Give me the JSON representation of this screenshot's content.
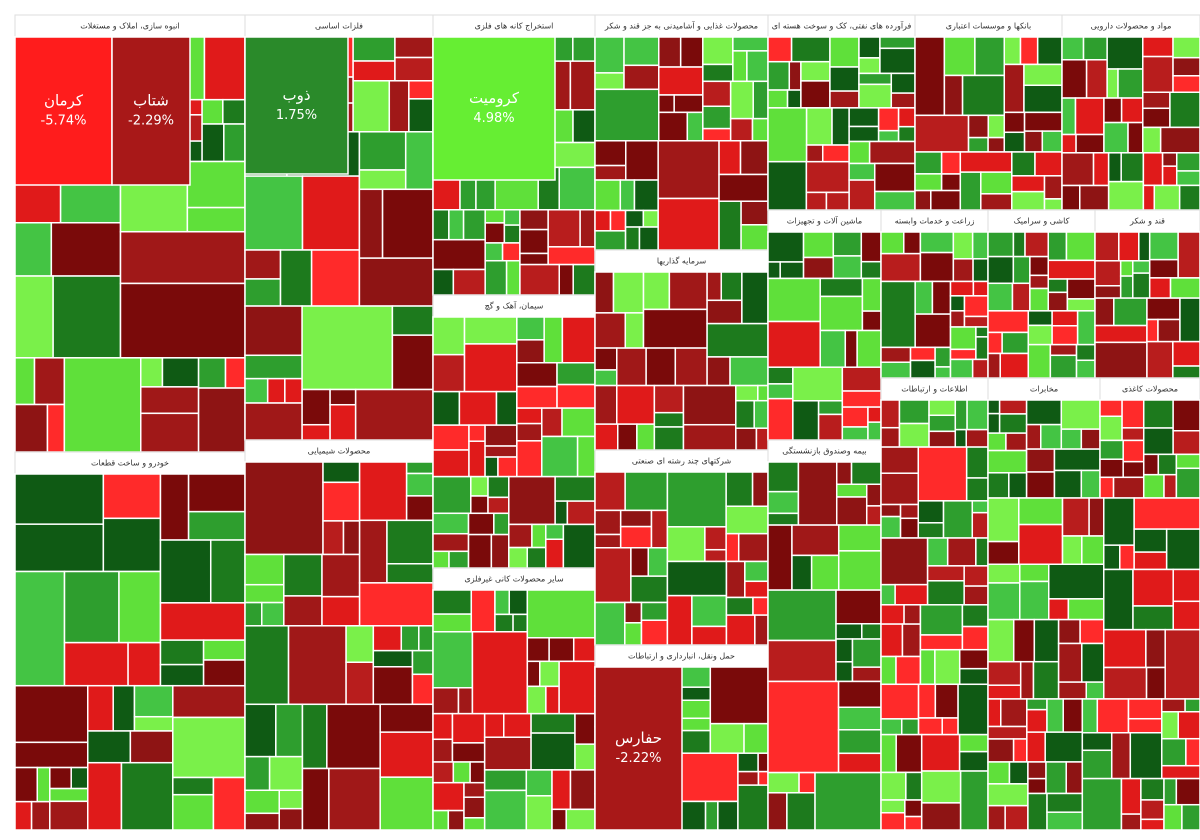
{
  "chart_data": {
    "type": "treemap",
    "sectors": [
      {
        "title": "انبوه سازی، املاک و مستغلات",
        "tiles": [
          "کرمان",
          "شتاب"
        ],
        "values": [
          -5.74,
          -2.29
        ],
        "value_labels": [
          "-5.74%",
          "-2.29%"
        ]
      },
      {
        "title": "فلزات اساسی",
        "tiles": [
          "ذوب"
        ],
        "values": [
          1.75
        ],
        "value_labels": [
          "1.75%"
        ]
      },
      {
        "title": "استخراج کانه های فلزی",
        "tiles": [
          "کرومیت"
        ],
        "values": [
          4.98
        ],
        "value_labels": [
          "4.98%"
        ]
      },
      {
        "title": "محصولات غذایی و آشامیدنی به جز قند و شکر"
      },
      {
        "title": "فرآورده های نفتی، کک و سوخت هسته ای"
      },
      {
        "title": "بانکها و موسسات اعتباری"
      },
      {
        "title": "مواد و محصولات دارویی"
      },
      {
        "title": "خودرو و ساخت قطعات"
      },
      {
        "title": "محصولات شیمیایی"
      },
      {
        "title": "سیمان، آهک و گچ"
      },
      {
        "title": "سایر محصولات کانی غیرفلزی"
      },
      {
        "title": "سرمایه گذاریها"
      },
      {
        "title": "شرکتهای چند رشته ای صنعتی"
      },
      {
        "title": "حمل ونقل، انبارداری و ارتباطات",
        "tiles": [
          "حفارس"
        ],
        "values": [
          -2.22
        ],
        "value_labels": [
          "-2.22%"
        ]
      },
      {
        "title": "ماشین آلات و تجهیزات"
      },
      {
        "title": "زراعت و خدمات وابسته"
      },
      {
        "title": "کاشی و سرامیک"
      },
      {
        "title": "قند و شکر"
      },
      {
        "title": "بیمه وصندوق بازنشستگی"
      },
      {
        "title": "اطلاعات و ارتباطات"
      },
      {
        "title": "مخابرات"
      },
      {
        "title": "محصولات کاغذی"
      }
    ]
  }
}
